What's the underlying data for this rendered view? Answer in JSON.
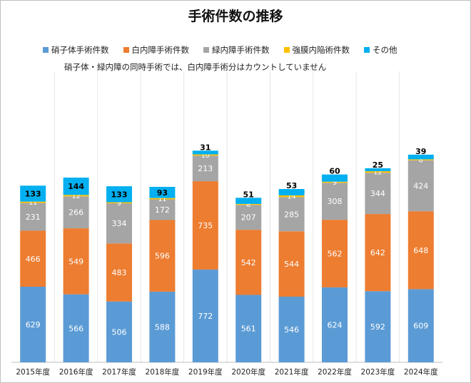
{
  "chart_data": {
    "type": "bar",
    "stacked": true,
    "title": "手術件数の推移",
    "note": "硝子体・緑内障の同時手術では、白内障手術分はカウントしていません",
    "categories": [
      "2015年度",
      "2016年度",
      "2017年度",
      "2018年度",
      "2019年度",
      "2020年度",
      "2021年度",
      "2022年度",
      "2023年度",
      "2024年度"
    ],
    "series": [
      {
        "name": "硝子体手術件数",
        "color": "#5b9bd5",
        "values": [
          629,
          566,
          506,
          588,
          772,
          561,
          546,
          624,
          592,
          609
        ]
      },
      {
        "name": "白内障手術件数",
        "color": "#ed7d31",
        "values": [
          466,
          549,
          483,
          596,
          735,
          542,
          544,
          562,
          642,
          648
        ]
      },
      {
        "name": "緑内障手術件数",
        "color": "#a5a5a5",
        "values": [
          231,
          266,
          334,
          172,
          213,
          207,
          285,
          308,
          344,
          424
        ]
      },
      {
        "name": "強膜内陥術件数",
        "color": "#ffc000",
        "values": [
          11,
          12,
          9,
          11,
          10,
          8,
          14,
          9,
          12,
          8
        ]
      },
      {
        "name": "その他",
        "color": "#00b0f0",
        "values": [
          133,
          144,
          133,
          93,
          31,
          51,
          53,
          60,
          25,
          39
        ]
      }
    ],
    "legend": "top",
    "grid": false,
    "xlabel": "",
    "ylabel": ""
  }
}
